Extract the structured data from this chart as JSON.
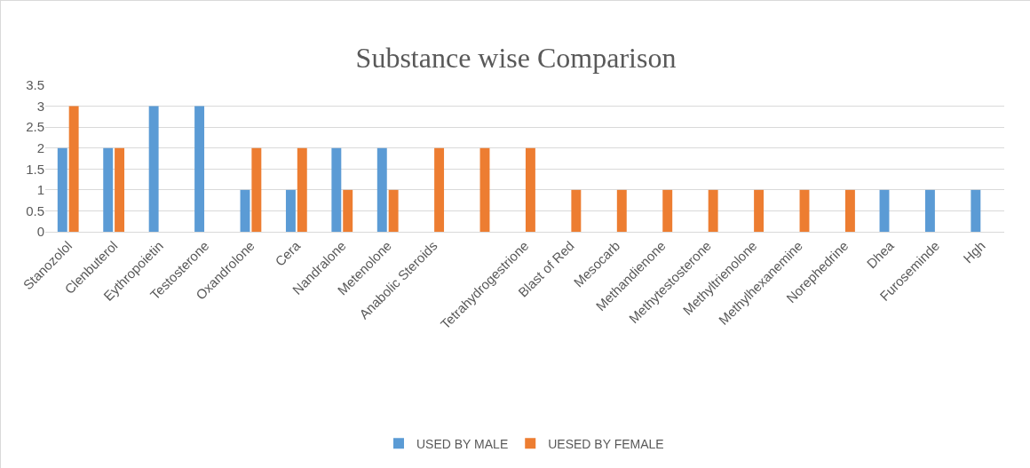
{
  "chart_data": {
    "type": "bar",
    "title": "Substance wise Comparison",
    "categories": [
      "Stanozolol",
      "Clenbuterol",
      "Eythropoietin",
      "Testosterone",
      "Oxandrolone",
      "Cera",
      "Nandralone",
      "Metenolone",
      "Anabolic Steroids",
      null,
      "Tetrahydrogestrione",
      "Blast of Red",
      "Mesocarb",
      "Methandienone",
      "Methytestosterone",
      "Methyltrienolone",
      "Methylhexanemine",
      "Norephedrine",
      "Dhea",
      "Furoseminde",
      "Hgh"
    ],
    "series": [
      {
        "name": "USED BY MALE",
        "color": "#5b9bd5",
        "values": [
          2,
          2,
          3,
          3,
          1,
          1,
          2,
          2,
          null,
          null,
          null,
          null,
          null,
          null,
          null,
          null,
          null,
          null,
          1,
          1,
          1
        ]
      },
      {
        "name": "UESED BY FEMALE",
        "color": "#ed7d31",
        "values": [
          3,
          2,
          null,
          null,
          2,
          2,
          1,
          1,
          2,
          2,
          2,
          1,
          1,
          1,
          1,
          1,
          1,
          1,
          null,
          null,
          null
        ]
      }
    ],
    "ylim": [
      0,
      3.5
    ],
    "yticks": [
      0,
      0.5,
      1,
      1.5,
      2,
      2.5,
      3,
      3.5
    ],
    "grid": "y",
    "legend": "bottom"
  }
}
